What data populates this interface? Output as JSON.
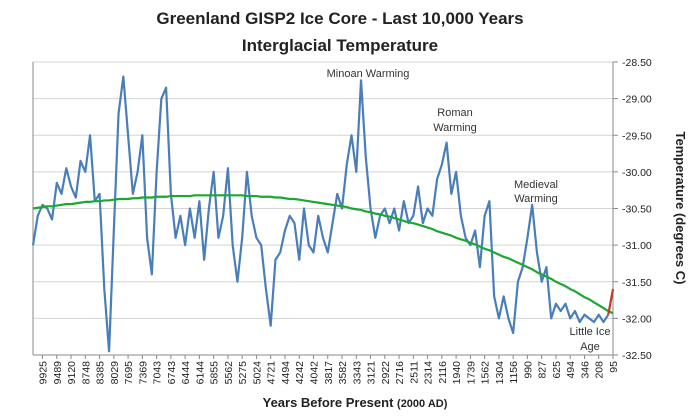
{
  "chart_data": {
    "type": "line",
    "title": "Greenland GISP2 Ice Core - Last 10,000 Years",
    "subtitle": "Interglacial Temperature",
    "x_label": "Years Before Present",
    "x_label_note": "(2000 AD)",
    "y_label": "Temperature (degrees C)",
    "annotations": [
      {
        "lines": [
          "Minoan Warming"
        ]
      },
      {
        "lines": [
          "Roman",
          "Warming"
        ]
      },
      {
        "lines": [
          "Medieval",
          "Warming"
        ]
      },
      {
        "lines": [
          "Little Ice",
          "Age"
        ]
      }
    ],
    "categories": [
      null,
      null,
      "9925",
      null,
      null,
      "9489",
      null,
      null,
      "9120",
      null,
      null,
      "8748",
      null,
      null,
      "8385",
      null,
      null,
      "8029",
      null,
      null,
      "7695",
      null,
      null,
      "7369",
      null,
      null,
      "7043",
      null,
      null,
      "6743",
      null,
      null,
      "6444",
      null,
      null,
      "6144",
      null,
      null,
      "5855",
      null,
      null,
      "5562",
      null,
      null,
      "5275",
      null,
      null,
      "5024",
      null,
      null,
      "4721",
      null,
      null,
      "4494",
      null,
      null,
      "4242",
      null,
      null,
      "4042",
      null,
      null,
      "3817",
      null,
      null,
      "3582",
      null,
      null,
      "3343",
      null,
      null,
      "3121",
      null,
      null,
      "2922",
      null,
      null,
      "2716",
      null,
      null,
      "2511",
      null,
      null,
      "2314",
      null,
      null,
      "2116",
      null,
      null,
      "1940",
      null,
      null,
      "1739",
      null,
      null,
      "1562",
      null,
      null,
      "1304",
      null,
      null,
      "1156",
      null,
      null,
      "990",
      null,
      null,
      "827",
      null,
      null,
      "625",
      null,
      null,
      "494",
      null,
      null,
      "346",
      null,
      null,
      "208",
      null,
      null,
      "95"
    ],
    "series": [
      {
        "color": "#4a7ebb",
        "values": [
          -31.0,
          -30.6,
          -30.45,
          -30.5,
          -30.65,
          -30.15,
          -30.3,
          -29.95,
          -30.2,
          -30.35,
          -29.85,
          -30.0,
          -29.5,
          -30.4,
          -30.3,
          -31.6,
          -32.45,
          -30.8,
          -29.2,
          -28.7,
          -29.5,
          -30.3,
          -30.0,
          -29.5,
          -30.9,
          -31.4,
          -30.0,
          -29.0,
          -28.85,
          -30.3,
          -30.9,
          -30.6,
          -31.0,
          -30.5,
          -30.9,
          -30.4,
          -31.2,
          -30.5,
          -30.0,
          -30.9,
          -30.6,
          -29.95,
          -31.0,
          -31.5,
          -30.9,
          -30.0,
          -30.6,
          -30.9,
          -31.0,
          -31.6,
          -32.1,
          -31.2,
          -31.1,
          -30.8,
          -30.6,
          -30.7,
          -31.2,
          -30.5,
          -31.0,
          -31.1,
          -30.6,
          -30.9,
          -31.1,
          -30.7,
          -30.3,
          -30.5,
          -29.9,
          -29.5,
          -30.0,
          -28.75,
          -29.8,
          -30.5,
          -30.9,
          -30.6,
          -30.5,
          -30.7,
          -30.5,
          -30.8,
          -30.4,
          -30.7,
          -30.6,
          -30.2,
          -30.7,
          -30.5,
          -30.6,
          -30.1,
          -29.9,
          -29.6,
          -30.3,
          -30.0,
          -30.6,
          -30.9,
          -31.0,
          -30.8,
          -31.3,
          -30.6,
          -30.4,
          -31.7,
          -32.0,
          -31.7,
          -32.0,
          -32.2,
          -31.5,
          -31.3,
          -30.9,
          -30.45,
          -31.1,
          -31.5,
          -31.3,
          -32.0,
          -31.8,
          -31.9,
          -31.8,
          -32.0,
          -31.9,
          -32.05,
          -31.95,
          -32.0,
          -32.05,
          -31.95,
          -32.05,
          -31.95,
          null
        ]
      },
      {
        "color": "#1aa832",
        "values": [
          -30.5,
          -30.49,
          -30.48,
          -30.47,
          -30.47,
          -30.46,
          -30.45,
          -30.44,
          -30.44,
          -30.43,
          -30.42,
          -30.41,
          -30.41,
          -30.4,
          -30.4,
          -30.39,
          -30.39,
          -30.38,
          -30.37,
          -30.37,
          -30.37,
          -30.36,
          -30.36,
          -30.35,
          -30.35,
          -30.35,
          -30.34,
          -30.34,
          -30.34,
          -30.33,
          -30.33,
          -30.33,
          -30.33,
          -30.33,
          -30.32,
          -30.32,
          -30.32,
          -30.32,
          -30.32,
          -30.32,
          -30.32,
          -30.32,
          -30.32,
          -30.32,
          -30.32,
          -30.33,
          -30.33,
          -30.33,
          -30.34,
          -30.34,
          -30.34,
          -30.35,
          -30.35,
          -30.36,
          -30.37,
          -30.37,
          -30.38,
          -30.39,
          -30.4,
          -30.41,
          -30.42,
          -30.43,
          -30.44,
          -30.45,
          -30.46,
          -30.47,
          -30.48,
          -30.5,
          -30.51,
          -30.52,
          -30.54,
          -30.55,
          -30.57,
          -30.58,
          -30.6,
          -30.61,
          -30.63,
          -30.65,
          -30.67,
          -30.69,
          -30.7,
          -30.72,
          -30.74,
          -30.76,
          -30.78,
          -30.81,
          -30.83,
          -30.85,
          -30.87,
          -30.9,
          -30.92,
          -30.94,
          -30.97,
          -30.99,
          -31.02,
          -31.05,
          -31.07,
          -31.1,
          -31.13,
          -31.16,
          -31.18,
          -31.21,
          -31.24,
          -31.27,
          -31.3,
          -31.33,
          -31.37,
          -31.4,
          -31.43,
          -31.46,
          -31.5,
          -31.53,
          -31.56,
          -31.6,
          -31.63,
          -31.67,
          -31.71,
          -31.74,
          -31.78,
          -31.82,
          -31.86,
          -31.9,
          -31.93
        ]
      },
      {
        "color": "#c0392b",
        "values": [
          null,
          null,
          null,
          null,
          null,
          null,
          null,
          null,
          null,
          null,
          null,
          null,
          null,
          null,
          null,
          null,
          null,
          null,
          null,
          null,
          null,
          null,
          null,
          null,
          null,
          null,
          null,
          null,
          null,
          null,
          null,
          null,
          null,
          null,
          null,
          null,
          null,
          null,
          null,
          null,
          null,
          null,
          null,
          null,
          null,
          null,
          null,
          null,
          null,
          null,
          null,
          null,
          null,
          null,
          null,
          null,
          null,
          null,
          null,
          null,
          null,
          null,
          null,
          null,
          null,
          null,
          null,
          null,
          null,
          null,
          null,
          null,
          null,
          null,
          null,
          null,
          null,
          null,
          null,
          null,
          null,
          null,
          null,
          null,
          null,
          null,
          null,
          null,
          null,
          null,
          null,
          null,
          null,
          null,
          null,
          null,
          null,
          null,
          null,
          null,
          null,
          null,
          null,
          null,
          null,
          null,
          null,
          null,
          null,
          null,
          null,
          null,
          null,
          null,
          null,
          null,
          null,
          null,
          null,
          null,
          null,
          -31.95,
          -31.6
        ]
      }
    ],
    "ylim": [
      -32.5,
      -28.5
    ],
    "yticks": [
      {
        "value": -28.5,
        "label": "-28.50"
      },
      {
        "value": -29,
        "label": "-29.00"
      },
      {
        "value": -29.5,
        "label": "-29.50"
      },
      {
        "value": -30,
        "label": "-30.00"
      },
      {
        "value": -30.5,
        "label": "-30.50"
      },
      {
        "value": -31,
        "label": "-31.00"
      },
      {
        "value": -31.5,
        "label": "-31.50"
      },
      {
        "value": -32,
        "label": "-32.00"
      },
      {
        "value": -32.5,
        "label": "-32.50"
      }
    ],
    "grid": true,
    "y_axis_side": "right"
  }
}
